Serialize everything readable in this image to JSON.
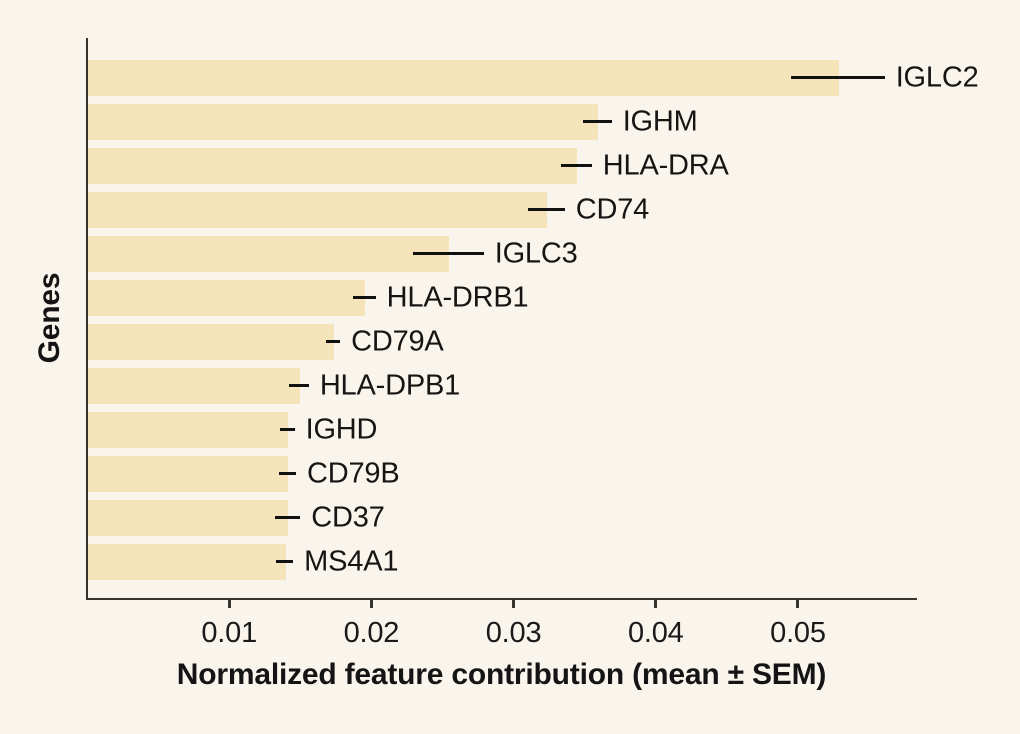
{
  "figure": {
    "background_color": "#FAF5EC"
  },
  "chart_data": {
    "type": "bar",
    "orientation": "horizontal",
    "title": "",
    "xlabel": "Normalized feature contribution (mean ± SEM)",
    "ylabel": "Genes",
    "categories": [
      "IGLC2",
      "IGHM",
      "HLA-DRA",
      "CD74",
      "IGLC3",
      "HLA-DRB1",
      "CD79A",
      "HLA-DPB1",
      "IGHD",
      "CD79B",
      "CD37",
      "MS4A1"
    ],
    "series": [
      {
        "name": "mean",
        "values": [
          0.0528,
          0.0359,
          0.0344,
          0.0323,
          0.0254,
          0.0195,
          0.0173,
          0.0149,
          0.0141,
          0.0141,
          0.0141,
          0.0139
        ]
      },
      {
        "name": "sem",
        "values": [
          0.0033,
          0.001,
          0.0011,
          0.0013,
          0.0025,
          0.0008,
          0.0005,
          0.0007,
          0.0005,
          0.0006,
          0.0009,
          0.0006
        ]
      }
    ],
    "x_ticks": [
      0.01,
      0.02,
      0.03,
      0.04,
      0.05
    ],
    "x_tick_labels": [
      "0.01",
      "0.02",
      "0.03",
      "0.04",
      "0.05"
    ],
    "xlim": [
      0,
      0.0583
    ],
    "grid": false,
    "legend": null,
    "spines": [
      "left",
      "bottom"
    ],
    "bar_color": "#F5E3BA",
    "error_color": "#111111",
    "axis_color": "#37332E",
    "background_color": "#FAF5EC"
  }
}
